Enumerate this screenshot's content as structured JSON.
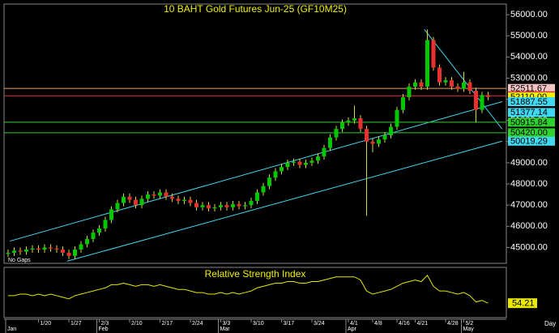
{
  "chart_data": [
    {
      "type": "candlestick",
      "title": "10 BAHT Gold Futures Jun-25 (GF10M25)",
      "annotation": "No Gaps",
      "x_label": "Day",
      "categories": [
        null,
        null,
        null,
        null,
        null,
        "1/20",
        null,
        null,
        null,
        null,
        "1/27",
        null,
        null,
        null,
        null,
        "2/3",
        null,
        null,
        null,
        null,
        "2/10",
        null,
        null,
        null,
        null,
        "2/17",
        null,
        null,
        null,
        null,
        "2/24",
        null,
        null,
        null,
        null,
        "3/3",
        null,
        null,
        null,
        null,
        "3/10",
        null,
        null,
        null,
        null,
        "3/17",
        null,
        null,
        null,
        null,
        "3/24",
        null,
        null,
        null,
        null,
        null,
        "4/1",
        null,
        null,
        null,
        "4/8",
        null,
        null,
        null,
        "4/16",
        null,
        null,
        "4/21",
        null,
        null,
        null,
        null,
        "4/28",
        null,
        null,
        "5/2",
        null,
        null,
        null,
        null
      ],
      "months": [
        "Jan",
        null,
        null,
        null,
        null,
        null,
        null,
        null,
        null,
        null,
        null,
        null,
        null,
        null,
        null,
        "Feb",
        null,
        null,
        null,
        null,
        null,
        null,
        null,
        null,
        null,
        null,
        null,
        null,
        null,
        null,
        null,
        null,
        null,
        null,
        null,
        "Mar",
        null,
        null,
        null,
        null,
        null,
        null,
        null,
        null,
        null,
        null,
        null,
        null,
        null,
        null,
        null,
        null,
        null,
        null,
        null,
        null,
        "Apr",
        null,
        null,
        null,
        null,
        null,
        null,
        null,
        null,
        null,
        null,
        null,
        null,
        null,
        null,
        null,
        null,
        null,
        null,
        "May",
        null,
        null,
        null,
        null
      ],
      "open": [
        44700,
        44750,
        44850,
        44800,
        44900,
        44950,
        44900,
        45000,
        44950,
        44900,
        44750,
        44600,
        44900,
        45150,
        45400,
        45700,
        45900,
        46300,
        46800,
        47100,
        47400,
        47250,
        47000,
        47300,
        47500,
        47450,
        47600,
        47400,
        47300,
        47200,
        47250,
        47100,
        46900,
        47000,
        46850,
        46900,
        47000,
        46900,
        47050,
        46950,
        47000,
        47200,
        47600,
        47900,
        48300,
        48600,
        48800,
        49000,
        49050,
        48900,
        49000,
        49100,
        49300,
        49700,
        50200,
        50600,
        50900,
        51000,
        51100,
        50600,
        50000,
        49900,
        50100,
        50300,
        50700,
        51500,
        52100,
        52600,
        52800,
        52600,
        54800,
        53500,
        52800,
        52900,
        52600,
        52500,
        52800,
        52400,
        51500,
        52200
      ],
      "high": [
        44900,
        45000,
        45000,
        45050,
        45100,
        45100,
        45150,
        45150,
        45100,
        45050,
        44900,
        45050,
        45300,
        45550,
        45850,
        46050,
        46450,
        46950,
        47250,
        47550,
        47550,
        47400,
        47450,
        47650,
        47650,
        47750,
        47750,
        47550,
        47450,
        47400,
        47400,
        47250,
        47150,
        47150,
        47050,
        47150,
        47150,
        47200,
        47200,
        47150,
        47350,
        47750,
        48050,
        48450,
        48750,
        48950,
        49150,
        49200,
        49200,
        49150,
        49250,
        49450,
        49850,
        50350,
        50750,
        51050,
        51150,
        51700,
        51250,
        50750,
        50150,
        50250,
        50450,
        50850,
        51650,
        52250,
        52750,
        52950,
        52950,
        55300,
        54950,
        53650,
        53050,
        53050,
        52750,
        53300,
        52950,
        52550,
        52350,
        52350
      ],
      "low": [
        44550,
        44600,
        44650,
        44650,
        44750,
        44750,
        44750,
        44800,
        44750,
        44600,
        44450,
        44450,
        44750,
        45000,
        45250,
        45550,
        45750,
        46150,
        46650,
        46950,
        47100,
        46850,
        46850,
        47150,
        47300,
        47300,
        47250,
        47150,
        47050,
        47050,
        46950,
        46750,
        46750,
        46700,
        46700,
        46750,
        46750,
        46750,
        46800,
        46800,
        46850,
        47050,
        47450,
        47750,
        48150,
        48450,
        48650,
        48850,
        48750,
        48750,
        48850,
        48950,
        49150,
        49550,
        50050,
        50450,
        50750,
        50850,
        50450,
        46500,
        49500,
        49750,
        49950,
        50150,
        50550,
        51350,
        51950,
        52450,
        52450,
        52450,
        53350,
        52650,
        52650,
        52450,
        52350,
        52350,
        52250,
        50900,
        51350,
        51960
      ],
      "close": [
        44750,
        44850,
        44800,
        44900,
        44950,
        44900,
        45000,
        44950,
        44900,
        44750,
        44600,
        44900,
        45150,
        45400,
        45700,
        45900,
        46300,
        46800,
        47100,
        47400,
        47250,
        47000,
        47300,
        47500,
        47450,
        47600,
        47400,
        47300,
        47200,
        47250,
        47100,
        46900,
        47000,
        46850,
        46900,
        47000,
        46900,
        47050,
        46950,
        47000,
        47200,
        47600,
        47900,
        48300,
        48600,
        48800,
        49000,
        49050,
        48900,
        49000,
        49100,
        49300,
        49700,
        50200,
        50600,
        50900,
        51000,
        51100,
        50600,
        50000,
        49900,
        50100,
        50300,
        50700,
        51500,
        52100,
        52600,
        52800,
        52600,
        54800,
        53500,
        52800,
        52900,
        52600,
        52500,
        52800,
        52400,
        51500,
        52200,
        52110
      ],
      "up_color": "#00c800",
      "down_color": "#e83030",
      "wick_color": "#d8d840",
      "ylim": [
        44250,
        56500
      ],
      "yticks": [
        {
          "value": 45000,
          "label": "45000.00"
        },
        {
          "value": 46000,
          "label": "46000.00"
        },
        {
          "value": 47000,
          "label": "47000.00"
        },
        {
          "value": 48000,
          "label": "48000.00"
        },
        {
          "value": 49000,
          "label": "49000.00"
        },
        {
          "value": 50000,
          "label": "50000.00"
        },
        {
          "value": 51000,
          "label": "51000.00"
        },
        {
          "value": 52000,
          "label": "52000.00"
        },
        {
          "value": 53000,
          "label": "53000.00"
        },
        {
          "value": 54000,
          "label": "54000.00"
        },
        {
          "value": 55000,
          "label": "55000.00"
        },
        {
          "value": 56000,
          "label": "56000.00"
        }
      ],
      "levels": [
        {
          "value": 52511.67,
          "color": "#f2c4c4",
          "text_color": "#000000",
          "line_color": "#e8a060"
        },
        {
          "value": 52166.67,
          "color": "#e83030",
          "text_color": "#ffffff",
          "line_color": "#e83030"
        },
        {
          "value": 52110,
          "label": "52110.00",
          "color": "#f0f000",
          "text_color": "#000000"
        },
        {
          "value": 51887.55,
          "color": "#40d8f0",
          "text_color": "#000000"
        },
        {
          "value": 51377.14,
          "color": "#40d8f0",
          "text_color": "#000000"
        },
        {
          "value": 50915.84,
          "color": "#30d030",
          "text_color": "#000000",
          "line_color": "#30d030"
        },
        {
          "value": 50420,
          "label": "50420.00",
          "color": "#30d030",
          "text_color": "#000000",
          "line_color": "#30d030"
        },
        {
          "value": 50019.29,
          "color": "#40d8f0",
          "text_color": "#000000"
        }
      ],
      "trendlines": [
        {
          "x": [
            0.3,
            81.3
          ],
          "y": [
            45300,
            51887.55
          ],
          "color": "#40d8f0"
        },
        {
          "x": [
            9.7,
            81.3
          ],
          "y": [
            44350,
            50019.29
          ],
          "color": "#40d8f0"
        },
        {
          "x": [
            68.5,
            81.3
          ],
          "y": [
            55300,
            50600
          ],
          "color": "#40d8f0"
        }
      ]
    },
    {
      "type": "line",
      "title": "Relative Strength Index",
      "values": [
        59,
        59,
        60,
        60,
        59,
        60,
        59,
        60,
        59,
        58,
        57,
        59,
        60,
        61,
        62,
        63,
        64,
        66,
        66,
        67,
        66,
        65,
        66,
        66,
        65,
        66,
        65,
        64,
        63,
        63,
        62,
        61,
        61,
        60,
        60,
        61,
        60,
        61,
        60,
        61,
        62,
        64,
        65,
        66,
        67,
        67,
        68,
        68,
        67,
        67,
        68,
        68,
        69,
        70,
        71,
        71,
        71,
        71,
        69,
        62,
        60,
        61,
        62,
        63,
        65,
        67,
        68,
        69,
        68,
        72,
        65,
        62,
        62,
        61,
        60,
        61,
        59,
        55,
        56,
        54.21
      ],
      "color": "#e8e800",
      "ylim": [
        45,
        75
      ]
    }
  ]
}
